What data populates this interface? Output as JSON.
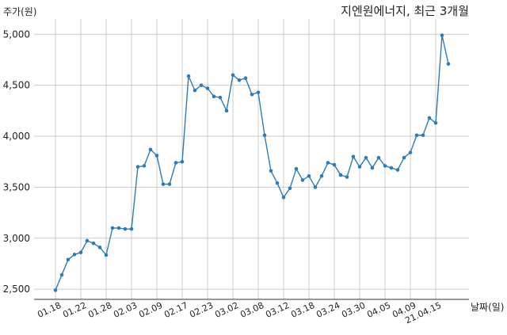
{
  "chart_data": {
    "type": "line",
    "title": "지엔원에너지, 최근 3개월",
    "ylabel": "주가(원)",
    "xlabel": "날짜(일)",
    "ylim": [
      2400,
      5150
    ],
    "yticks": [
      2500,
      3000,
      3500,
      4000,
      4500,
      5000
    ],
    "ytick_labels": [
      "2,500",
      "3,000",
      "3,500",
      "4,000",
      "4,500",
      "5,000"
    ],
    "xtick_labels": [
      "01.18",
      "01.22",
      "01.28",
      "02.03",
      "02.09",
      "02.17",
      "02.23",
      "03.02",
      "03.08",
      "03.12",
      "03.18",
      "03.24",
      "03.30",
      "04.05",
      "04.09",
      "21.04.15"
    ],
    "grid": true,
    "line_color": "#2e7bb5",
    "series": [
      {
        "values": [
          2490,
          2640,
          2790,
          2840,
          2860,
          2975,
          2950,
          2910,
          2835,
          3100,
          3100,
          3090,
          3090,
          3700,
          3710,
          3870,
          3810,
          3530,
          3530,
          3740,
          3750,
          4590,
          4450,
          4500,
          4470,
          4390,
          4380,
          4250,
          4600,
          4550,
          4570,
          4410,
          4430,
          4010,
          3660,
          3540,
          3400,
          3490,
          3680,
          3570,
          3610,
          3500,
          3610,
          3740,
          3720,
          3620,
          3600,
          3800,
          3700,
          3790,
          3690,
          3790,
          3710,
          3690,
          3670,
          3790,
          3840,
          4010,
          4010,
          4180,
          4130,
          4990,
          4710
        ]
      }
    ]
  }
}
